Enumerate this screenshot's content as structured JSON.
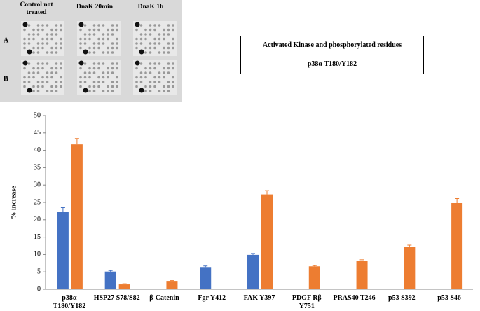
{
  "panel": {
    "columns": [
      "Control not treated",
      "DnaK 20min",
      "DnaK 1h"
    ],
    "rows": [
      "A",
      "B"
    ]
  },
  "table": {
    "header": "Activated Kinase and phosphorylated residues",
    "row": "p38α T180/Y182"
  },
  "chart_data": {
    "type": "bar",
    "y_label": "% increase",
    "categories": [
      "p38α T180/Y182",
      "HSP27 S78/S82",
      "β-Catenin",
      "Fgr Y412",
      "FAK Y397",
      "PDGF Rβ Y751",
      "PRAS40 T246",
      "p53 S392",
      "p53 S46"
    ],
    "series": [
      {
        "color": "#4472c4",
        "values": [
          22.3,
          5.1,
          null,
          6.4,
          9.9,
          null,
          null,
          null,
          null
        ],
        "errors": [
          1.2,
          0.3,
          null,
          0.3,
          0.4,
          null,
          null,
          null,
          null
        ]
      },
      {
        "color": "#ed7d31",
        "values": [
          41.7,
          1.4,
          2.4,
          null,
          27.3,
          6.6,
          8.1,
          12.2,
          24.8
        ],
        "errors": [
          1.7,
          0.2,
          0.1,
          null,
          1.1,
          0.2,
          0.4,
          0.5,
          1.3
        ]
      }
    ],
    "ylim": [
      0,
      50
    ],
    "yticks": [
      0,
      5,
      10,
      15,
      20,
      25,
      30,
      35,
      40,
      45,
      50
    ]
  }
}
